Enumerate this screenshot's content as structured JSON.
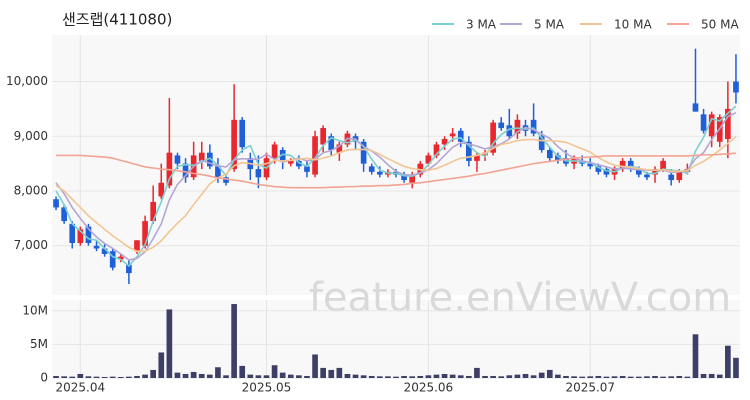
{
  "chart_data": [
    {
      "type": "candlestick",
      "title": "샌즈랩(411080)",
      "watermark": "feature.enViewV.com",
      "up_color": "#e8282e",
      "down_color": "#1f5fd8",
      "ylim": [
        6100,
        10850
      ],
      "yticks": [
        {
          "value": 7000,
          "label": "7,000"
        },
        {
          "value": 8000,
          "label": "8,000"
        },
        {
          "value": 9000,
          "label": "9,000"
        },
        {
          "value": 10000,
          "label": "10,000"
        }
      ],
      "grid": true,
      "legend": "top-right",
      "open": [
        7850,
        7700,
        7400,
        7050,
        7350,
        7000,
        6950,
        6900,
        6750,
        6650,
        6900,
        7000,
        7450,
        7900,
        8100,
        8650,
        8500,
        8250,
        8550,
        8700,
        8450,
        8250,
        8400,
        9300,
        8600,
        8400,
        8250,
        8600,
        8750,
        8500,
        8550,
        8450,
        8300,
        8850,
        9000,
        8700,
        8850,
        9000,
        8900,
        8450,
        8350,
        8300,
        8350,
        8300,
        8150,
        8300,
        8500,
        8650,
        8850,
        9000,
        9100,
        8900,
        8550,
        8650,
        8700,
        9250,
        9200,
        9050,
        9200,
        9300,
        9000,
        8750,
        8650,
        8600,
        8500,
        8550,
        8500,
        8450,
        8400,
        8300,
        8400,
        8550,
        8400,
        8300,
        8300,
        8400,
        8300,
        8200,
        8350,
        9600,
        9400,
        9000,
        8900,
        8950,
        10000
      ],
      "high": [
        7900,
        7750,
        7450,
        7350,
        7400,
        7100,
        7050,
        6950,
        6850,
        6750,
        7100,
        7550,
        8100,
        8500,
        9700,
        8700,
        8600,
        8900,
        8900,
        8850,
        8600,
        8300,
        9950,
        9350,
        8700,
        8650,
        8700,
        8900,
        8800,
        8600,
        8650,
        8550,
        9100,
        9200,
        9050,
        8900,
        9100,
        9050,
        8950,
        8500,
        8450,
        8400,
        8400,
        8350,
        8350,
        8550,
        8700,
        8900,
        9000,
        9150,
        9150,
        9000,
        8700,
        8750,
        9300,
        9350,
        9500,
        9400,
        9300,
        9600,
        9100,
        8800,
        8700,
        8750,
        8650,
        8650,
        8600,
        8500,
        8450,
        8450,
        8600,
        8600,
        8450,
        8350,
        8450,
        8600,
        8400,
        8400,
        8500,
        10600,
        9500,
        9450,
        9400,
        10000,
        10500
      ],
      "low": [
        7650,
        7400,
        6950,
        7000,
        7000,
        6900,
        6800,
        6550,
        6700,
        6300,
        6850,
        6950,
        7400,
        7850,
        8050,
        8400,
        8150,
        8200,
        8400,
        8400,
        8150,
        8100,
        8350,
        8700,
        8200,
        8050,
        8200,
        8500,
        8400,
        8450,
        8400,
        8250,
        8250,
        8700,
        8650,
        8550,
        8800,
        8750,
        8350,
        8300,
        8250,
        8250,
        8250,
        8150,
        8050,
        8250,
        8450,
        8600,
        8750,
        8900,
        8800,
        8450,
        8350,
        8550,
        8650,
        9100,
        8950,
        8950,
        9000,
        9000,
        8700,
        8550,
        8500,
        8450,
        8400,
        8450,
        8400,
        8300,
        8250,
        8200,
        8350,
        8350,
        8250,
        8200,
        8150,
        8350,
        8100,
        8150,
        8300,
        9450,
        9050,
        8800,
        8800,
        8600,
        9600
      ],
      "close": [
        7700,
        7450,
        7050,
        7300,
        7050,
        6950,
        6850,
        6600,
        6800,
        6500,
        7100,
        7450,
        7800,
        8150,
        8700,
        8500,
        8250,
        8650,
        8700,
        8450,
        8250,
        8150,
        9300,
        8800,
        8400,
        8250,
        8600,
        8850,
        8550,
        8550,
        8450,
        8350,
        9000,
        9150,
        8750,
        8850,
        9050,
        8900,
        8500,
        8350,
        8300,
        8350,
        8300,
        8200,
        8300,
        8500,
        8650,
        8850,
        8950,
        9050,
        8900,
        8550,
        8650,
        8700,
        9250,
        9150,
        9000,
        9300,
        9100,
        9050,
        8750,
        8600,
        8550,
        8500,
        8600,
        8500,
        8450,
        8350,
        8300,
        8400,
        8550,
        8400,
        8300,
        8250,
        8400,
        8550,
        8200,
        8350,
        8400,
        9450,
        9100,
        9400,
        9350,
        9500,
        9800
      ],
      "series": [
        {
          "name": "3 MA",
          "color": "#7ccfcf",
          "values": [
            8000,
            7750,
            7400,
            7270,
            7130,
            7100,
            6950,
            6800,
            6750,
            6630,
            6800,
            7020,
            7450,
            7800,
            8220,
            8450,
            8480,
            8470,
            8530,
            8600,
            8470,
            8280,
            8570,
            8750,
            8830,
            8480,
            8420,
            8570,
            8670,
            8650,
            8520,
            8450,
            8600,
            8830,
            8970,
            8920,
            8880,
            8930,
            8820,
            8580,
            8380,
            8330,
            8320,
            8280,
            8270,
            8330,
            8480,
            8670,
            8820,
            8950,
            8970,
            8830,
            8700,
            8630,
            8870,
            9030,
            9130,
            9150,
            9130,
            9150,
            8970,
            8800,
            8630,
            8550,
            8550,
            8530,
            8520,
            8430,
            8370,
            8350,
            8420,
            8450,
            8420,
            8320,
            8320,
            8400,
            8380,
            8370,
            8320,
            8730,
            8980,
            9320,
            9280,
            9420,
            9550
          ]
        },
        {
          "name": "5 MA",
          "color": "#b4a6d4",
          "values": [
            8150,
            7950,
            7700,
            7500,
            7310,
            7160,
            7040,
            6950,
            6850,
            6740,
            6770,
            6890,
            7130,
            7400,
            7840,
            8120,
            8280,
            8450,
            8560,
            8510,
            8460,
            8440,
            8570,
            8590,
            8580,
            8580,
            8670,
            8580,
            8530,
            8560,
            8600,
            8550,
            8580,
            8700,
            8740,
            8820,
            8960,
            8950,
            8810,
            8730,
            8620,
            8480,
            8360,
            8300,
            8290,
            8330,
            8390,
            8500,
            8650,
            8800,
            8880,
            8860,
            8820,
            8770,
            8810,
            8860,
            8950,
            9080,
            9160,
            9120,
            9040,
            8960,
            8810,
            8690,
            8600,
            8550,
            8520,
            8480,
            8440,
            8400,
            8420,
            8400,
            8390,
            8380,
            8380,
            8380,
            8340,
            8350,
            8380,
            8590,
            8700,
            8940,
            9140,
            9360,
            9430
          ]
        },
        {
          "name": "10 MA",
          "color": "#f2c592",
          "values": [
            8100,
            8000,
            7850,
            7700,
            7550,
            7420,
            7300,
            7180,
            7080,
            6970,
            6900,
            6900,
            6970,
            7090,
            7260,
            7410,
            7550,
            7750,
            7940,
            8130,
            8240,
            8310,
            8460,
            8520,
            8500,
            8470,
            8500,
            8560,
            8550,
            8560,
            8580,
            8600,
            8570,
            8600,
            8640,
            8700,
            8750,
            8760,
            8760,
            8740,
            8670,
            8590,
            8520,
            8450,
            8410,
            8390,
            8380,
            8410,
            8470,
            8540,
            8600,
            8620,
            8650,
            8690,
            8780,
            8850,
            8880,
            8920,
            8940,
            8940,
            8920,
            8920,
            8910,
            8890,
            8830,
            8770,
            8710,
            8610,
            8530,
            8470,
            8450,
            8430,
            8410,
            8390,
            8380,
            8390,
            8360,
            8360,
            8370,
            8470,
            8540,
            8640,
            8750,
            8870,
            8990
          ]
        },
        {
          "name": "50 MA",
          "color": "#f3a393",
          "values": [
            8650,
            8650,
            8650,
            8650,
            8640,
            8630,
            8620,
            8600,
            8560,
            8520,
            8480,
            8440,
            8420,
            8400,
            8390,
            8370,
            8350,
            8320,
            8300,
            8270,
            8240,
            8220,
            8200,
            8180,
            8150,
            8120,
            8100,
            8080,
            8070,
            8060,
            8060,
            8060,
            8060,
            8060,
            8070,
            8070,
            8080,
            8080,
            8090,
            8090,
            8100,
            8100,
            8110,
            8120,
            8140,
            8150,
            8170,
            8190,
            8210,
            8230,
            8250,
            8270,
            8300,
            8320,
            8350,
            8380,
            8410,
            8440,
            8470,
            8500,
            8520,
            8540,
            8560,
            8580,
            8600,
            8610,
            8620,
            8630,
            8640,
            8640,
            8640,
            8640,
            8640,
            8640,
            8640,
            8640,
            8640,
            8640,
            8640,
            8650,
            8660,
            8660,
            8670,
            8680,
            8690
          ]
        }
      ]
    },
    {
      "type": "bar",
      "color": "#3e3f66",
      "categories": [
        null,
        null,
        null,
        "2025.04",
        null,
        null,
        null,
        null,
        null,
        null,
        null,
        null,
        null,
        null,
        null,
        null,
        null,
        null,
        null,
        null,
        null,
        null,
        null,
        null,
        null,
        null,
        "2025.05",
        null,
        null,
        null,
        null,
        null,
        null,
        null,
        null,
        null,
        null,
        null,
        null,
        null,
        null,
        null,
        null,
        null,
        null,
        null,
        "2025.06",
        null,
        null,
        null,
        null,
        null,
        null,
        null,
        null,
        null,
        null,
        null,
        null,
        null,
        null,
        null,
        null,
        null,
        null,
        null,
        "2025.07",
        null,
        null,
        null,
        null,
        null,
        null,
        null,
        null,
        null,
        null,
        null,
        null,
        null,
        null,
        null,
        null,
        null,
        null
      ],
      "values": [
        300000,
        250000,
        200000,
        600000,
        250000,
        200000,
        150000,
        200000,
        150000,
        200000,
        300000,
        500000,
        1200000,
        3800000,
        10200000,
        800000,
        600000,
        900000,
        600000,
        500000,
        1600000,
        400000,
        11000000,
        1800000,
        500000,
        400000,
        400000,
        1900000,
        800000,
        500000,
        400000,
        300000,
        3500000,
        1500000,
        1200000,
        1500000,
        600000,
        500000,
        400000,
        300000,
        250000,
        250000,
        200000,
        300000,
        250000,
        300000,
        400000,
        500000,
        600000,
        500000,
        400000,
        300000,
        1500000,
        300000,
        300000,
        250000,
        400000,
        500000,
        600000,
        400000,
        800000,
        1200000,
        500000,
        300000,
        250000,
        200000,
        250000,
        300000,
        200000,
        250000,
        300000,
        200000,
        200000,
        250000,
        300000,
        200000,
        250000,
        300000,
        200000,
        6500000,
        600000,
        600000,
        500000,
        4800000,
        3000000
      ],
      "ylim": [
        0,
        11600000
      ],
      "yticks": [
        {
          "value": 0,
          "label": "0"
        },
        {
          "value": 5000000,
          "label": "5M"
        },
        {
          "value": 10000000,
          "label": "10M"
        }
      ],
      "grid": true
    }
  ]
}
